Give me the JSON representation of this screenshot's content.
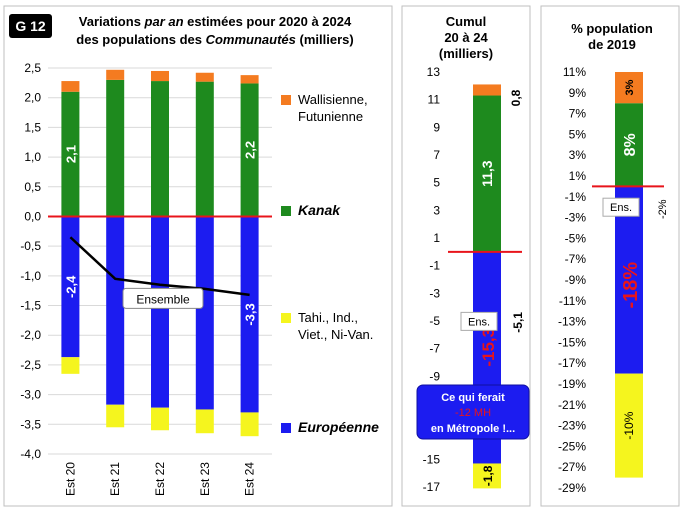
{
  "figure_tag": "G 12",
  "colors": {
    "orange": "#F47B20",
    "green": "#1E8A1E",
    "blue": "#1C1CF0",
    "yellow": "#F5F51E",
    "zero_line": "#E8141B",
    "ensemble_line": "#000000",
    "label_red": "#E8141B",
    "callout_bg": "#1C1CF0",
    "callout_text": "#FFFFFF",
    "callout_highlight": "#E8141B",
    "tag_bg": "#000000",
    "tag_text": "#FFFFFF"
  },
  "chart_data": [
    {
      "type": "bar",
      "stacked": true,
      "title_part1": "Variations ",
      "title_italic1": "par an",
      "title_part2": " estimées pour 2020 à 2024",
      "title_part3": "des populations des ",
      "title_italic2": "Communautés",
      "title_part4": " (milliers)",
      "categories": [
        "Est 20",
        "Est 21",
        "Est 22",
        "Est 23",
        "Est 24"
      ],
      "ylim": [
        -4.0,
        2.5
      ],
      "yticks": [
        "-4,0",
        "-3,5",
        "-3,0",
        "-2,5",
        "-2,0",
        "-1,5",
        "-1,0",
        "-0,5",
        "0,0",
        "0,5",
        "1,0",
        "1,5",
        "2,0",
        "2,5"
      ],
      "ytick_values": [
        -4.0,
        -3.5,
        -3.0,
        -2.5,
        -2.0,
        -1.5,
        -1.0,
        -0.5,
        0.0,
        0.5,
        1.0,
        1.5,
        2.0,
        2.5
      ],
      "grid": true,
      "series": [
        {
          "name": "Kanak",
          "color": "green",
          "values": [
            2.1,
            2.3,
            2.28,
            2.27,
            2.24
          ]
        },
        {
          "name": "Wallisienne, Futunienne",
          "color": "orange",
          "values": [
            0.18,
            0.17,
            0.17,
            0.15,
            0.14
          ]
        },
        {
          "name": "Européenne",
          "color": "blue",
          "values": [
            -2.37,
            -3.17,
            -3.22,
            -3.25,
            -3.3
          ]
        },
        {
          "name": "Tahi., Ind., Viet., Ni-Van.",
          "color": "yellow",
          "values": [
            -0.28,
            -0.38,
            -0.38,
            -0.4,
            -0.4
          ]
        }
      ],
      "ensemble": {
        "name": "Ensemble",
        "values": [
          -0.35,
          -1.05,
          -1.15,
          -1.22,
          -1.32
        ]
      },
      "data_labels": [
        {
          "series": "Kanak",
          "index": 0,
          "text": "2,1"
        },
        {
          "series": "Kanak",
          "index": 4,
          "text": "2,2"
        },
        {
          "series": "Européenne",
          "index": 0,
          "text": "-2,4"
        },
        {
          "series": "Européenne",
          "index": 4,
          "text": "-3,3"
        }
      ],
      "legend": [
        {
          "text": "Wallisienne,\nFutunienne",
          "color": "orange",
          "style": "normal"
        },
        {
          "text": "Kanak",
          "color": "green",
          "style": "bold-italic"
        },
        {
          "text": "Tahi., Ind.,\nViet., Ni-Van.",
          "color": "yellow",
          "style": "normal"
        },
        {
          "text": "Européenne",
          "color": "blue",
          "style": "bold-italic"
        }
      ],
      "legend_position": "right"
    },
    {
      "type": "bar",
      "stacked": true,
      "title": "Cumul\n20 à 24\n(milliers)",
      "ylim": [
        -17,
        13
      ],
      "yticks": [
        "-17",
        "-15",
        "-13",
        "-11",
        "-9",
        "-7",
        "-5",
        "-3",
        "-1",
        "1",
        "3",
        "5",
        "7",
        "9",
        "11",
        "13"
      ],
      "ytick_values": [
        -17,
        -15,
        -13,
        -11,
        -9,
        -7,
        -5,
        -3,
        -1,
        1,
        3,
        5,
        7,
        9,
        11,
        13
      ],
      "series": [
        {
          "name": "Kanak",
          "color": "green",
          "values": [
            11.3
          ]
        },
        {
          "name": "Wallisienne, Futunienne",
          "color": "orange",
          "values": [
            0.8
          ]
        },
        {
          "name": "Européenne",
          "color": "blue",
          "values": [
            -15.3
          ]
        },
        {
          "name": "Tahi., Ind., Viet., Ni-Van.",
          "color": "yellow",
          "values": [
            -1.8
          ]
        }
      ],
      "ensemble": {
        "label": "Ens.",
        "value": -5.1,
        "label_text": "-5,1"
      },
      "data_labels": {
        "orange": "0,8",
        "green": "11,3",
        "blue": "-15,3",
        "yellow": "-1,8"
      },
      "callout": {
        "line1": "Ce qui ferait",
        "line2": "-12 MH",
        "line3": "en Métropole  !..."
      }
    },
    {
      "type": "bar",
      "stacked": true,
      "title": "% population\nde 2019",
      "ylim": [
        -29,
        11
      ],
      "yticks": [
        "-29%",
        "-27%",
        "-25%",
        "-23%",
        "-21%",
        "-19%",
        "-17%",
        "-15%",
        "-13%",
        "-11%",
        "-9%",
        "-7%",
        "-5%",
        "-3%",
        "-1%",
        "1%",
        "3%",
        "5%",
        "7%",
        "9%",
        "11%"
      ],
      "ytick_values": [
        -29,
        -27,
        -25,
        -23,
        -21,
        -19,
        -17,
        -15,
        -13,
        -11,
        -9,
        -7,
        -5,
        -3,
        -1,
        1,
        3,
        5,
        7,
        9,
        11
      ],
      "series": [
        {
          "name": "Kanak",
          "color": "green",
          "values": [
            8
          ]
        },
        {
          "name": "Wallisienne, Futunienne",
          "color": "orange",
          "values": [
            3
          ]
        },
        {
          "name": "Européenne",
          "color": "blue",
          "values": [
            -18
          ]
        },
        {
          "name": "Tahi., Ind., Viet., Ni-Van.",
          "color": "yellow",
          "values": [
            -10
          ]
        }
      ],
      "ensemble": {
        "label": "Ens.",
        "value": -2,
        "label_text": "-2%"
      },
      "data_labels": {
        "orange": "3%",
        "green": "8%",
        "blue": "-18%",
        "yellow": "-10%"
      }
    }
  ]
}
